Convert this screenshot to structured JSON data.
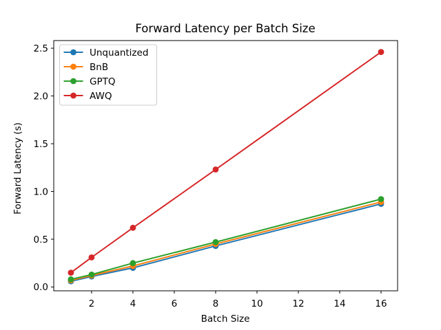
{
  "figure": {
    "background": "#ffffff"
  },
  "chart_data": {
    "type": "line",
    "title": "Forward Latency per Batch Size",
    "xlabel": "Batch Size",
    "ylabel": "Forward Latency (s)",
    "x": [
      1,
      2,
      4,
      8,
      16
    ],
    "series": [
      {
        "name": "Unquantized",
        "color": "#1f77b4",
        "values": [
          0.06,
          0.11,
          0.2,
          0.43,
          0.87
        ]
      },
      {
        "name": "BnB",
        "color": "#ff7f0e",
        "values": [
          0.07,
          0.12,
          0.22,
          0.45,
          0.89
        ]
      },
      {
        "name": "GPTQ",
        "color": "#2ca02c",
        "values": [
          0.08,
          0.13,
          0.25,
          0.47,
          0.92
        ]
      },
      {
        "name": "AWQ",
        "color": "#d62728",
        "values": [
          0.15,
          0.31,
          0.62,
          1.23,
          2.46
        ]
      }
    ],
    "xticks": [
      2,
      4,
      6,
      8,
      10,
      12,
      14,
      16
    ],
    "yticks": [
      0.0,
      0.5,
      1.0,
      1.5,
      2.0,
      2.5
    ],
    "xlim": [
      0.17,
      16.8
    ],
    "ylim": [
      -0.04,
      2.58
    ],
    "grid": false,
    "marker": "o",
    "legend": {
      "position": "upper-left",
      "entries": [
        "Unquantized",
        "BnB",
        "GPTQ",
        "AWQ"
      ]
    },
    "axis_color": "#000000",
    "legend_border_color": "#cccccc"
  }
}
